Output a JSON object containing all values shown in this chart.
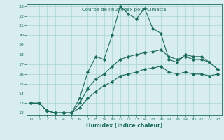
{
  "title": "Courbe de l'humidex pour Cimetta",
  "xlabel": "Humidex (Indice chaleur)",
  "xlim": [
    -0.5,
    23.5
  ],
  "ylim": [
    11.8,
    23.2
  ],
  "xticks": [
    0,
    1,
    2,
    3,
    4,
    5,
    6,
    7,
    8,
    9,
    10,
    11,
    12,
    13,
    14,
    15,
    16,
    17,
    18,
    19,
    20,
    21,
    22,
    23
  ],
  "yticks": [
    12,
    13,
    14,
    15,
    16,
    17,
    18,
    19,
    20,
    21,
    22,
    23
  ],
  "bg_color": "#d8eeee",
  "line_color": "#1a6b5a",
  "grid_color": "#aad4d4",
  "line1_x": [
    0,
    1,
    2,
    3,
    4,
    5,
    6,
    7,
    8,
    9,
    10,
    11,
    12,
    13,
    14,
    15,
    16,
    17,
    18,
    19,
    20,
    21,
    22,
    23
  ],
  "line1_y": [
    13.0,
    13.0,
    12.2,
    12.0,
    12.0,
    12.0,
    13.5,
    16.2,
    17.8,
    17.5,
    20.0,
    23.0,
    22.2,
    21.7,
    22.8,
    20.7,
    20.2,
    17.5,
    17.2,
    18.0,
    17.8,
    17.8,
    17.2,
    16.5
  ],
  "line2_x": [
    0,
    1,
    2,
    3,
    4,
    5,
    6,
    7,
    8,
    9,
    10,
    11,
    12,
    13,
    14,
    15,
    16,
    17,
    18,
    19,
    20,
    21,
    22,
    23
  ],
  "line2_y": [
    13.0,
    13.0,
    12.2,
    12.0,
    12.0,
    12.0,
    13.0,
    14.5,
    15.5,
    16.0,
    16.8,
    17.5,
    17.8,
    18.0,
    18.2,
    18.3,
    18.5,
    17.8,
    17.5,
    17.8,
    17.5,
    17.5,
    17.2,
    16.5
  ],
  "line3_x": [
    0,
    1,
    2,
    3,
    4,
    5,
    6,
    7,
    8,
    9,
    10,
    11,
    12,
    13,
    14,
    15,
    16,
    17,
    18,
    19,
    20,
    21,
    22,
    23
  ],
  "line3_y": [
    13.0,
    13.0,
    12.2,
    12.0,
    12.0,
    12.0,
    12.5,
    13.5,
    14.2,
    14.8,
    15.2,
    15.8,
    16.0,
    16.2,
    16.5,
    16.6,
    16.8,
    16.2,
    16.0,
    16.2,
    16.0,
    16.0,
    15.8,
    16.0
  ]
}
